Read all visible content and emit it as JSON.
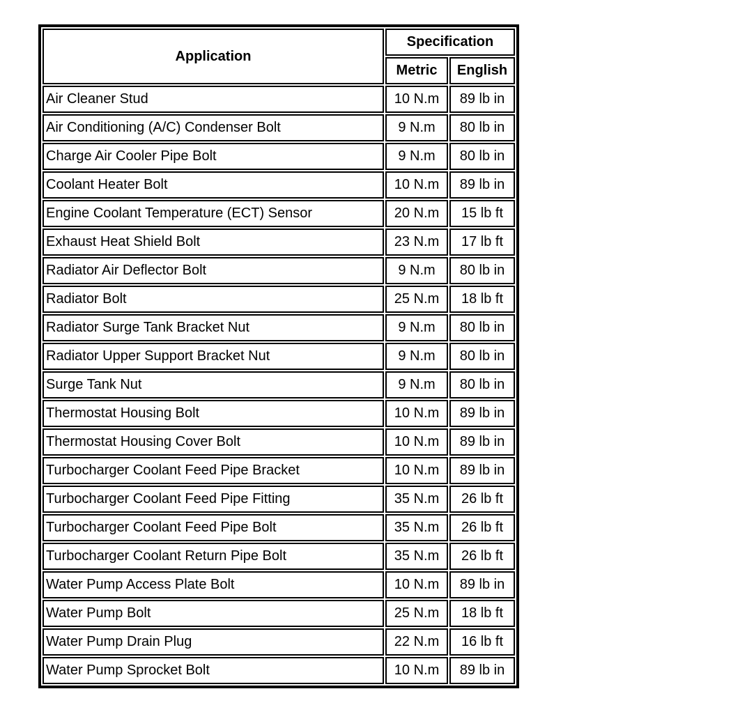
{
  "page": {
    "background_color": "#ffffff",
    "text_color": "#000000",
    "border_color": "#000000"
  },
  "table": {
    "header": {
      "application_label": "Application",
      "specification_label": "Specification",
      "metric_label": "Metric",
      "english_label": "English"
    },
    "rows": [
      {
        "application": "Air Cleaner Stud",
        "metric": "10 N.m",
        "english": "89 lb in"
      },
      {
        "application": "Air Conditioning (A/C) Condenser Bolt",
        "metric": "9 N.m",
        "english": "80 lb in"
      },
      {
        "application": "Charge Air Cooler Pipe Bolt",
        "metric": "9 N.m",
        "english": "80 lb in"
      },
      {
        "application": "Coolant Heater Bolt",
        "metric": "10 N.m",
        "english": "89 lb in"
      },
      {
        "application": "Engine Coolant Temperature (ECT) Sensor",
        "metric": "20 N.m",
        "english": "15 lb ft"
      },
      {
        "application": "Exhaust Heat Shield Bolt",
        "metric": "23 N.m",
        "english": "17 lb ft"
      },
      {
        "application": "Radiator Air Deflector Bolt",
        "metric": "9 N.m",
        "english": "80 lb in"
      },
      {
        "application": "Radiator Bolt",
        "metric": "25 N.m",
        "english": "18 lb ft"
      },
      {
        "application": "Radiator Surge Tank Bracket Nut",
        "metric": "9 N.m",
        "english": "80 lb in"
      },
      {
        "application": "Radiator Upper Support Bracket Nut",
        "metric": "9 N.m",
        "english": "80 lb in"
      },
      {
        "application": "Surge Tank Nut",
        "metric": "9 N.m",
        "english": "80 lb in"
      },
      {
        "application": "Thermostat Housing Bolt",
        "metric": "10 N.m",
        "english": "89 lb in"
      },
      {
        "application": "Thermostat Housing Cover Bolt",
        "metric": "10 N.m",
        "english": "89 lb in"
      },
      {
        "application": "Turbocharger Coolant Feed Pipe Bracket",
        "metric": "10 N.m",
        "english": "89 lb in"
      },
      {
        "application": "Turbocharger Coolant Feed Pipe Fitting",
        "metric": "35 N.m",
        "english": "26 lb ft"
      },
      {
        "application": "Turbocharger Coolant Feed Pipe Bolt",
        "metric": "35 N.m",
        "english": "26 lb ft"
      },
      {
        "application": "Turbocharger Coolant Return Pipe Bolt",
        "metric": "35 N.m",
        "english": "26 lb ft"
      },
      {
        "application": "Water Pump Access Plate Bolt",
        "metric": "10 N.m",
        "english": "89 lb in"
      },
      {
        "application": "Water Pump Bolt",
        "metric": "25 N.m",
        "english": "18 lb ft"
      },
      {
        "application": "Water Pump Drain Plug",
        "metric": "22 N.m",
        "english": "16 lb ft"
      },
      {
        "application": "Water Pump Sprocket Bolt",
        "metric": "10 N.m",
        "english": "89 lb in"
      }
    ]
  }
}
